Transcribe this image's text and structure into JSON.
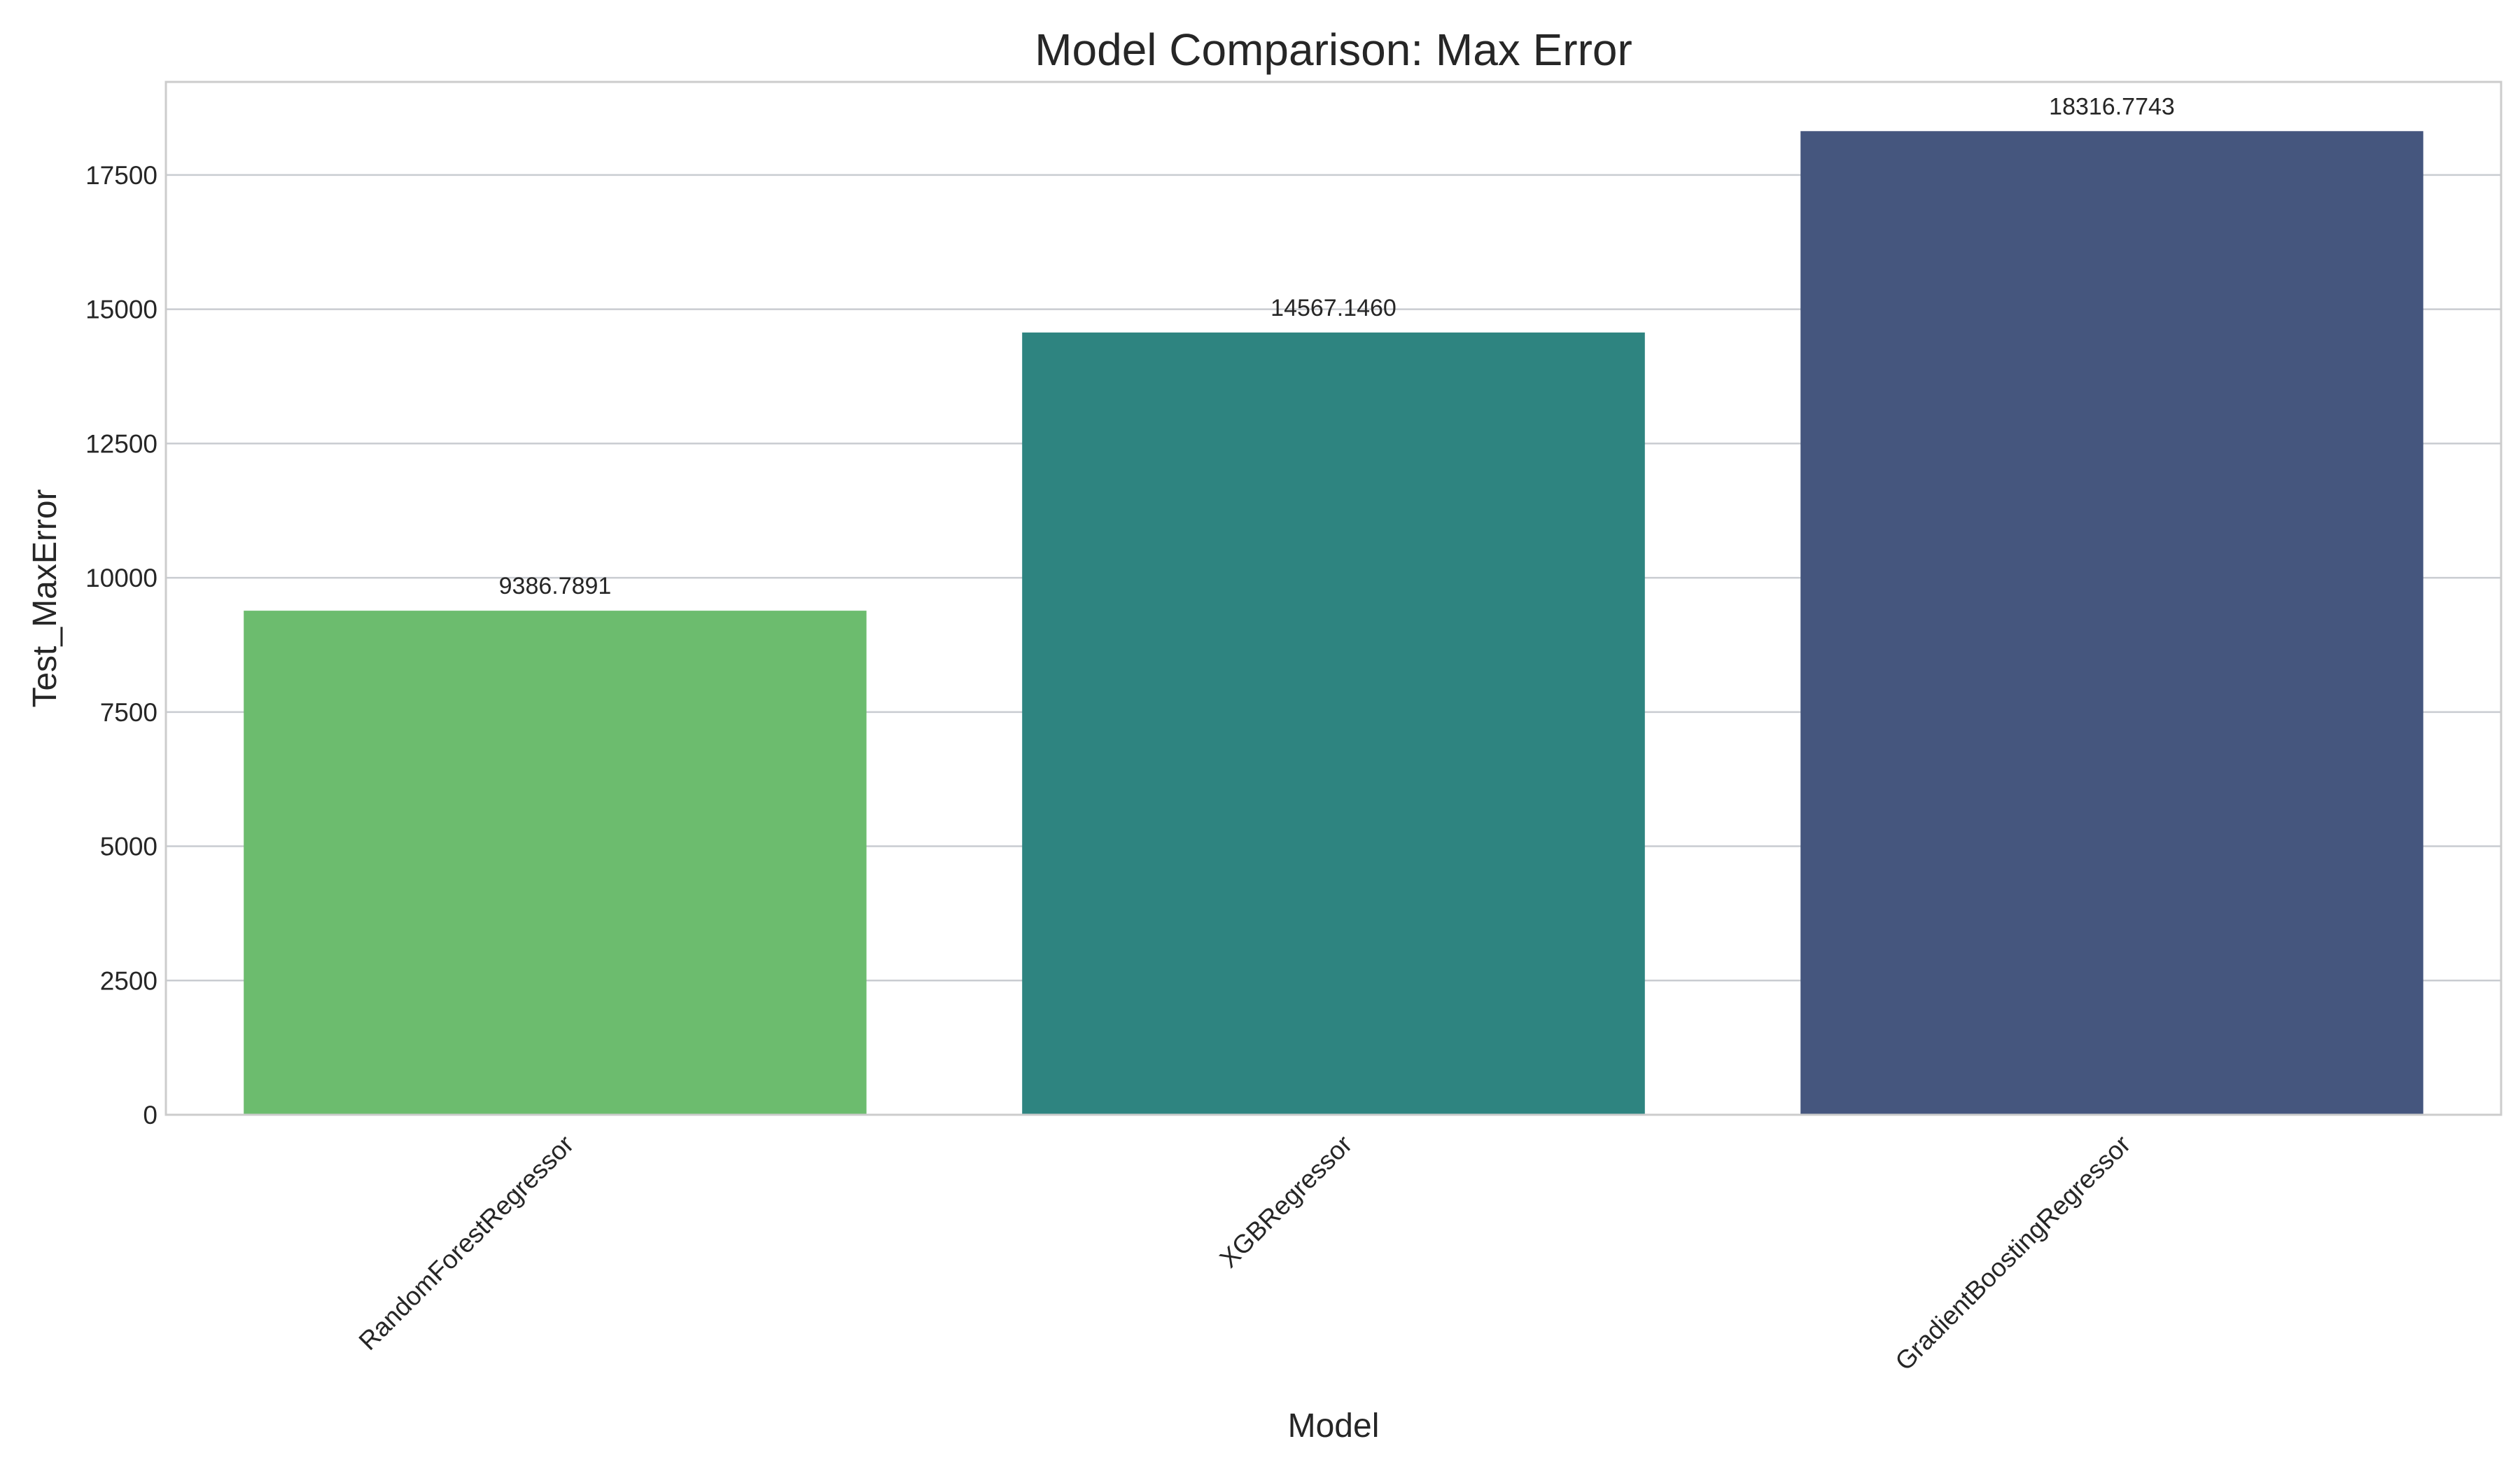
{
  "chart_data": {
    "type": "bar",
    "title": "Model Comparison: Max Error",
    "xlabel": "Model",
    "ylabel": "Test_MaxError",
    "categories": [
      "RandomForestRegressor",
      "XGBRegressor",
      "GradientBoostingRegressor"
    ],
    "values": [
      9386.7891,
      14567.146,
      18316.7743
    ],
    "value_labels": [
      "9386.7891",
      "14567.1460",
      "18316.7743"
    ],
    "colors": [
      "#6cbc6e",
      "#2e8480",
      "#45567e"
    ],
    "yticks": [
      0,
      2500,
      5000,
      7500,
      10000,
      12500,
      15000,
      17500
    ],
    "ytick_labels": [
      "0",
      "2500",
      "5000",
      "7500",
      "10000",
      "12500",
      "15000",
      "17500"
    ],
    "ylim": [
      0,
      19233.113
    ],
    "grid": true,
    "legend": "none"
  }
}
